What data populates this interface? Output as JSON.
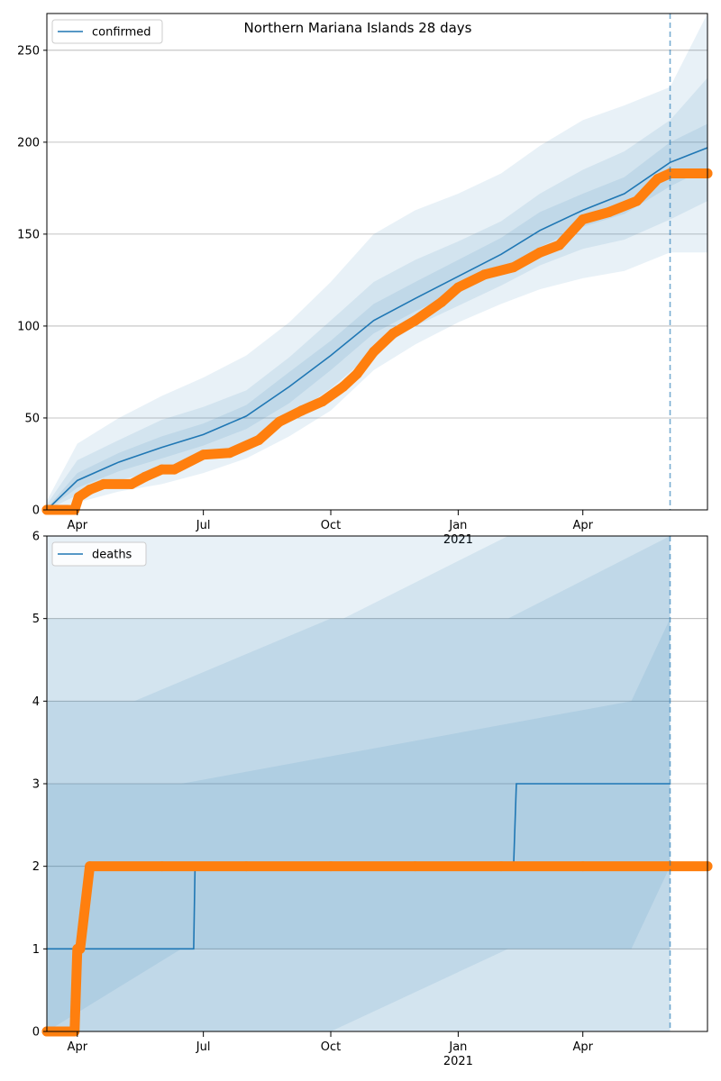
{
  "chart_data": [
    {
      "type": "line",
      "title": "Northern Mariana Islands 28 days",
      "legend": "top-left",
      "legend_entries": [
        "confirmed"
      ],
      "ylim": [
        0,
        270
      ],
      "yticks": [
        0,
        50,
        100,
        150,
        200,
        250
      ],
      "xlim": [
        "2020-03-10",
        "2021-06-30"
      ],
      "xticks": [
        {
          "date": "2020-04-01",
          "label": "Apr",
          "sublabel": ""
        },
        {
          "date": "2020-07-01",
          "label": "Jul",
          "sublabel": ""
        },
        {
          "date": "2020-10-01",
          "label": "Oct",
          "sublabel": ""
        },
        {
          "date": "2021-01-01",
          "label": "Jan",
          "sublabel": "2021"
        },
        {
          "date": "2021-04-01",
          "label": "Apr",
          "sublabel": ""
        }
      ],
      "forecast_start": "2021-06-03",
      "grid": "horizontal",
      "series": [
        {
          "name": "confirmed",
          "kind": "model-line",
          "color": "#1f77b4",
          "x": [
            "2020-03-10",
            "2020-04-01",
            "2020-05-01",
            "2020-06-01",
            "2020-07-01",
            "2020-08-01",
            "2020-09-01",
            "2020-10-01",
            "2020-11-01",
            "2020-12-01",
            "2021-01-01",
            "2021-02-01",
            "2021-03-01",
            "2021-04-01",
            "2021-05-01",
            "2021-06-03",
            "2021-06-30"
          ],
          "y": [
            0,
            16,
            26,
            34,
            41,
            51,
            67,
            84,
            103,
            115,
            127,
            139,
            152,
            163,
            172,
            189,
            197
          ]
        },
        {
          "name": "observed",
          "kind": "points",
          "color": "#ff7f0e",
          "x": [
            "2020-03-10",
            "2020-03-30",
            "2020-04-02",
            "2020-04-10",
            "2020-04-20",
            "2020-05-10",
            "2020-05-20",
            "2020-06-01",
            "2020-06-10",
            "2020-07-01",
            "2020-07-20",
            "2020-08-10",
            "2020-08-25",
            "2020-09-10",
            "2020-09-25",
            "2020-10-10",
            "2020-10-20",
            "2020-11-01",
            "2020-11-15",
            "2020-12-01",
            "2020-12-20",
            "2021-01-01",
            "2021-01-20",
            "2021-02-10",
            "2021-03-01",
            "2021-03-15",
            "2021-04-01",
            "2021-04-20",
            "2021-05-10",
            "2021-05-25",
            "2021-06-03",
            "2021-06-30"
          ],
          "y": [
            0,
            0,
            7,
            11,
            14,
            14,
            18,
            22,
            22,
            30,
            31,
            38,
            48,
            54,
            59,
            67,
            74,
            86,
            96,
            103,
            113,
            121,
            128,
            132,
            140,
            144,
            158,
            162,
            168,
            180,
            183,
            183
          ]
        }
      ],
      "bands": [
        {
          "x": [
            "2020-03-10",
            "2020-04-01",
            "2020-05-01",
            "2020-06-01",
            "2020-07-01",
            "2020-08-01",
            "2020-09-01",
            "2020-10-01",
            "2020-11-01",
            "2020-12-01",
            "2021-01-01",
            "2021-02-01",
            "2021-03-01",
            "2021-04-01",
            "2021-05-01",
            "2021-06-03",
            "2021-06-30"
          ],
          "lo": [
            0,
            4,
            10,
            14,
            20,
            28,
            40,
            54,
            76,
            90,
            102,
            112,
            120,
            126,
            130,
            140,
            140
          ],
          "hi": [
            5,
            36,
            50,
            62,
            72,
            84,
            102,
            124,
            150,
            163,
            172,
            183,
            198,
            212,
            220,
            230,
            270
          ]
        },
        {
          "x": [
            "2020-03-10",
            "2020-04-01",
            "2020-05-01",
            "2020-06-01",
            "2020-07-01",
            "2020-08-01",
            "2020-09-01",
            "2020-10-01",
            "2020-11-01",
            "2020-12-01",
            "2021-01-01",
            "2021-02-01",
            "2021-03-01",
            "2021-04-01",
            "2021-05-01",
            "2021-06-03",
            "2021-06-30"
          ],
          "lo": [
            0,
            8,
            16,
            22,
            29,
            37,
            50,
            66,
            86,
            100,
            111,
            122,
            133,
            142,
            147,
            158,
            168
          ],
          "hi": [
            3,
            27,
            38,
            49,
            56,
            65,
            83,
            103,
            124,
            136,
            146,
            157,
            172,
            185,
            195,
            212,
            235
          ]
        },
        {
          "x": [
            "2020-03-10",
            "2020-04-01",
            "2020-05-01",
            "2020-06-01",
            "2020-07-01",
            "2020-08-01",
            "2020-09-01",
            "2020-10-01",
            "2020-11-01",
            "2020-12-01",
            "2021-01-01",
            "2021-02-01",
            "2021-03-01",
            "2021-04-01",
            "2021-05-01",
            "2021-06-03",
            "2021-06-30"
          ],
          "lo": [
            0,
            12,
            21,
            28,
            35,
            44,
            58,
            76,
            96,
            108,
            119,
            130,
            143,
            154,
            161,
            176,
            186
          ],
          "hi": [
            1,
            20,
            31,
            40,
            47,
            57,
            75,
            92,
            112,
            124,
            136,
            148,
            162,
            172,
            181,
            200,
            210
          ]
        }
      ]
    },
    {
      "type": "line",
      "title": "",
      "legend": "top-left",
      "legend_entries": [
        "deaths"
      ],
      "ylim": [
        0,
        6
      ],
      "yticks": [
        0,
        1,
        2,
        3,
        4,
        5,
        6
      ],
      "xlim": [
        "2020-03-10",
        "2021-06-30"
      ],
      "xticks": [
        {
          "date": "2020-04-01",
          "label": "Apr",
          "sublabel": ""
        },
        {
          "date": "2020-07-01",
          "label": "Jul",
          "sublabel": ""
        },
        {
          "date": "2020-10-01",
          "label": "Oct",
          "sublabel": ""
        },
        {
          "date": "2021-01-01",
          "label": "Jan",
          "sublabel": "2021"
        },
        {
          "date": "2021-04-01",
          "label": "Apr",
          "sublabel": ""
        }
      ],
      "forecast_start": "2021-06-03",
      "grid": "horizontal",
      "series": [
        {
          "name": "deaths",
          "kind": "model-step",
          "color": "#1f77b4",
          "x": [
            "2020-03-10",
            "2020-06-24",
            "2020-06-25",
            "2021-02-10",
            "2021-02-12",
            "2021-06-03"
          ],
          "y": [
            1,
            1,
            2,
            2,
            3,
            3
          ]
        },
        {
          "name": "observed",
          "kind": "points",
          "color": "#ff7f0e",
          "x": [
            "2020-03-10",
            "2020-03-20",
            "2020-03-30",
            "2020-04-01",
            "2020-04-03",
            "2020-04-10",
            "2020-06-01",
            "2020-08-01",
            "2020-10-01",
            "2020-12-01",
            "2021-02-01",
            "2021-04-01",
            "2021-06-03",
            "2021-06-30"
          ],
          "y": [
            0,
            0,
            0,
            1,
            1,
            2,
            2,
            2,
            2,
            2,
            2,
            2,
            2,
            2
          ]
        }
      ],
      "bands": [
        {
          "x": [
            "2020-03-10",
            "2021-06-03"
          ],
          "lo": [
            0,
            0
          ],
          "hi": [
            6,
            6
          ]
        },
        {
          "x": [
            "2020-03-10",
            "2020-06-15",
            "2020-10-10",
            "2021-02-06",
            "2021-06-03"
          ],
          "lo": [
            0,
            0,
            0,
            0,
            0
          ],
          "hi": [
            5,
            5,
            5,
            6,
            6
          ]
        },
        {
          "x": [
            "2020-03-10",
            "2020-05-12",
            "2020-10-01",
            "2021-02-06",
            "2021-06-03"
          ],
          "lo": [
            0,
            0,
            0,
            1,
            1
          ],
          "hi": [
            4,
            4,
            5,
            5,
            6
          ]
        },
        {
          "x": [
            "2020-03-10",
            "2020-06-15",
            "2021-05-06",
            "2021-06-03"
          ],
          "lo": [
            0,
            1,
            1,
            2
          ],
          "hi": [
            3,
            3,
            4,
            5
          ]
        }
      ]
    }
  ]
}
